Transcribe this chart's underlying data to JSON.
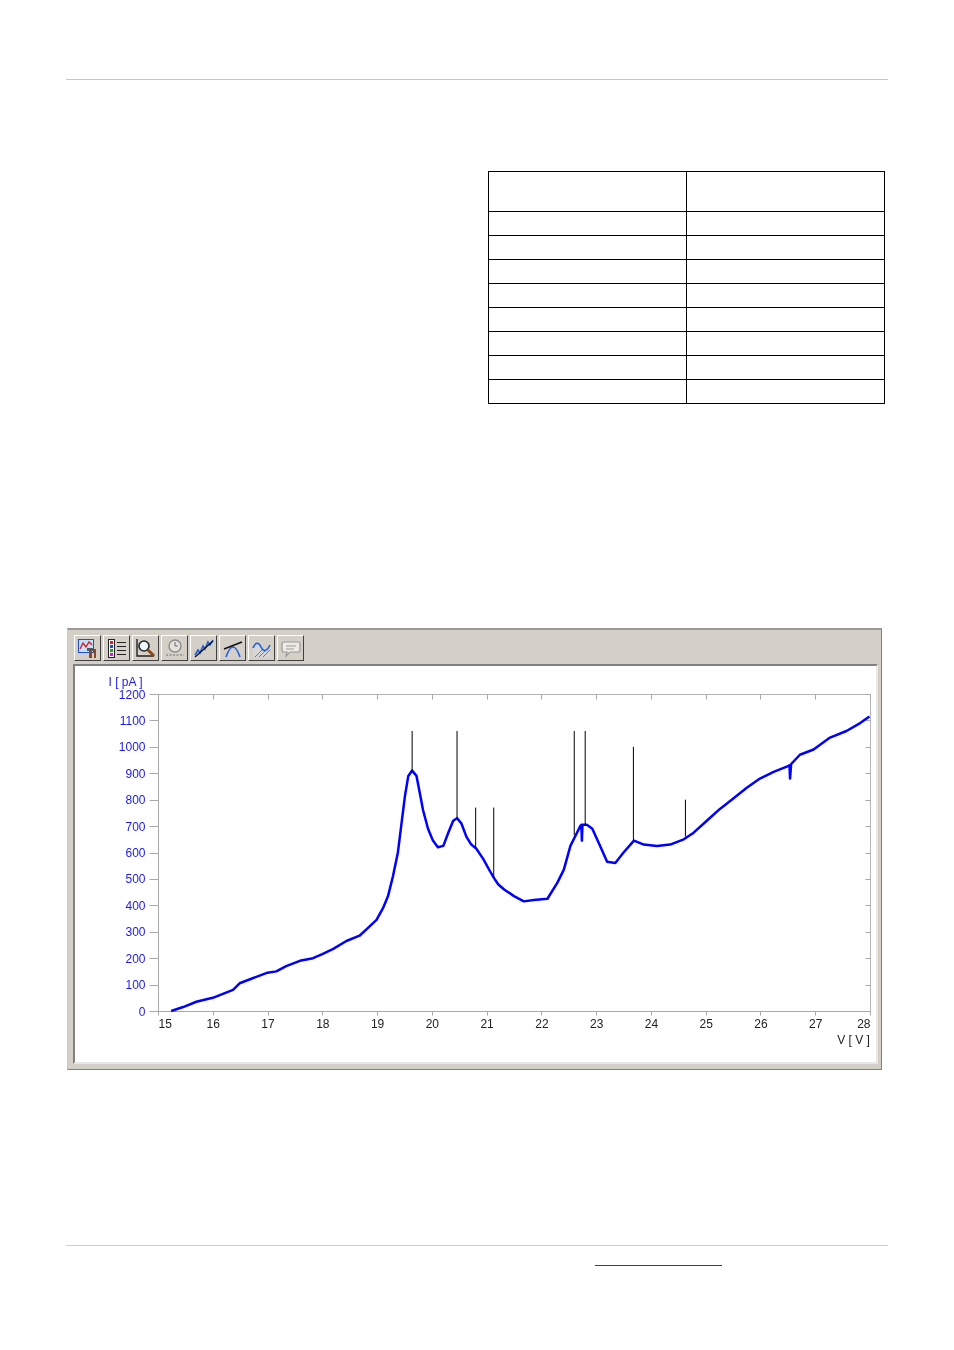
{
  "chart_data": {
    "type": "line",
    "xlabel": "V [ V ]",
    "ylabel": "I [ pA ]",
    "x": [
      15.24,
      15.46,
      15.7,
      16.0,
      16.37,
      16.49,
      16.74,
      17.0,
      17.16,
      17.34,
      17.59,
      17.83,
      18.0,
      18.2,
      18.44,
      18.68,
      18.81,
      18.99,
      19.11,
      19.2,
      19.29,
      19.38,
      19.44,
      19.51,
      19.57,
      19.64,
      19.72,
      19.78,
      19.84,
      19.93,
      20.02,
      20.11,
      20.21,
      20.3,
      20.39,
      20.46,
      20.54,
      20.63,
      20.72,
      20.81,
      20.94,
      21.06,
      21.13,
      21.21,
      21.32,
      21.5,
      21.68,
      21.86,
      22.11,
      22.29,
      22.41,
      22.53,
      22.65,
      22.71,
      22.73,
      22.74,
      22.75,
      22.83,
      22.93,
      23.05,
      23.2,
      23.35,
      23.5,
      23.69,
      23.87,
      24.11,
      24.35,
      24.6,
      24.78,
      25.02,
      25.26,
      25.51,
      25.75,
      25.99,
      26.24,
      26.48,
      26.53,
      26.54,
      26.56,
      26.72,
      26.97,
      27.27,
      27.57,
      27.82,
      27.99
    ],
    "series": [
      {
        "color": "#0000ff",
        "values": [
          0,
          15,
          35,
          50,
          80,
          105,
          125,
          145,
          150,
          170,
          190,
          200,
          215,
          235,
          265,
          285,
          310,
          345,
          390,
          435,
          510,
          600,
          700,
          815,
          890,
          910,
          890,
          825,
          760,
          690,
          645,
          620,
          625,
          675,
          720,
          730,
          710,
          660,
          630,
          615,
          575,
          530,
          505,
          480,
          460,
          435,
          415,
          420,
          425,
          485,
          535,
          625,
          675,
          700,
          705,
          645,
          705,
          705,
          690,
          635,
          565,
          560,
          600,
          645,
          630,
          625,
          630,
          650,
          675,
          720,
          765,
          805,
          845,
          880,
          905,
          925,
          930,
          880,
          935,
          970,
          990,
          1035,
          1060,
          1090,
          1115
        ]
      },
      {
        "color": "#000000",
        "x": [
          19.64,
          19.64,
          null,
          20.46,
          20.46,
          null,
          20.8,
          20.8,
          null,
          21.13,
          21.13,
          null,
          22.6,
          22.6,
          null,
          22.8,
          22.8,
          null,
          23.68,
          23.68,
          null,
          24.63,
          24.63
        ],
        "values": [
          910,
          1060,
          null,
          730,
          1060,
          null,
          615,
          770,
          null,
          505,
          770,
          null,
          665,
          1060,
          null,
          700,
          1060,
          null,
          645,
          1000,
          null,
          660,
          800
        ]
      }
    ],
    "xlim": [
      15,
      28
    ],
    "xticks": [
      15,
      16,
      17,
      18,
      19,
      20,
      21,
      22,
      23,
      24,
      25,
      26,
      27,
      28
    ],
    "ylim": [
      0,
      1200
    ],
    "yticks": [
      0,
      100,
      200,
      300,
      400,
      500,
      600,
      700,
      800,
      900,
      1000,
      1100,
      1200
    ]
  }
}
